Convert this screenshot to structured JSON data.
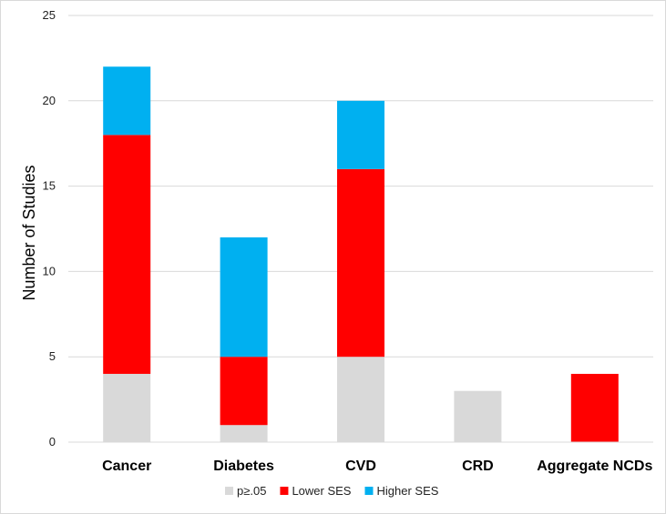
{
  "chart_data": {
    "type": "bar",
    "stacked": true,
    "title": "",
    "xlabel": "",
    "ylabel": "Number of Studies",
    "ylim": [
      0,
      25
    ],
    "yticks": [
      0,
      5,
      10,
      15,
      20,
      25
    ],
    "grid": true,
    "legend_position": "bottom",
    "categories": [
      "Cancer",
      "Diabetes",
      "CVD",
      "CRD",
      "Aggregate NCDs"
    ],
    "series": [
      {
        "name": "p≥.05",
        "color": "#d9d9d9",
        "values": [
          4,
          1,
          5,
          3,
          0
        ]
      },
      {
        "name": "Lower SES",
        "color": "#ff0000",
        "values": [
          14,
          4,
          11,
          0,
          4
        ]
      },
      {
        "name": "Higher SES",
        "color": "#00b0f0",
        "values": [
          4,
          7,
          4,
          0,
          0
        ]
      }
    ]
  }
}
